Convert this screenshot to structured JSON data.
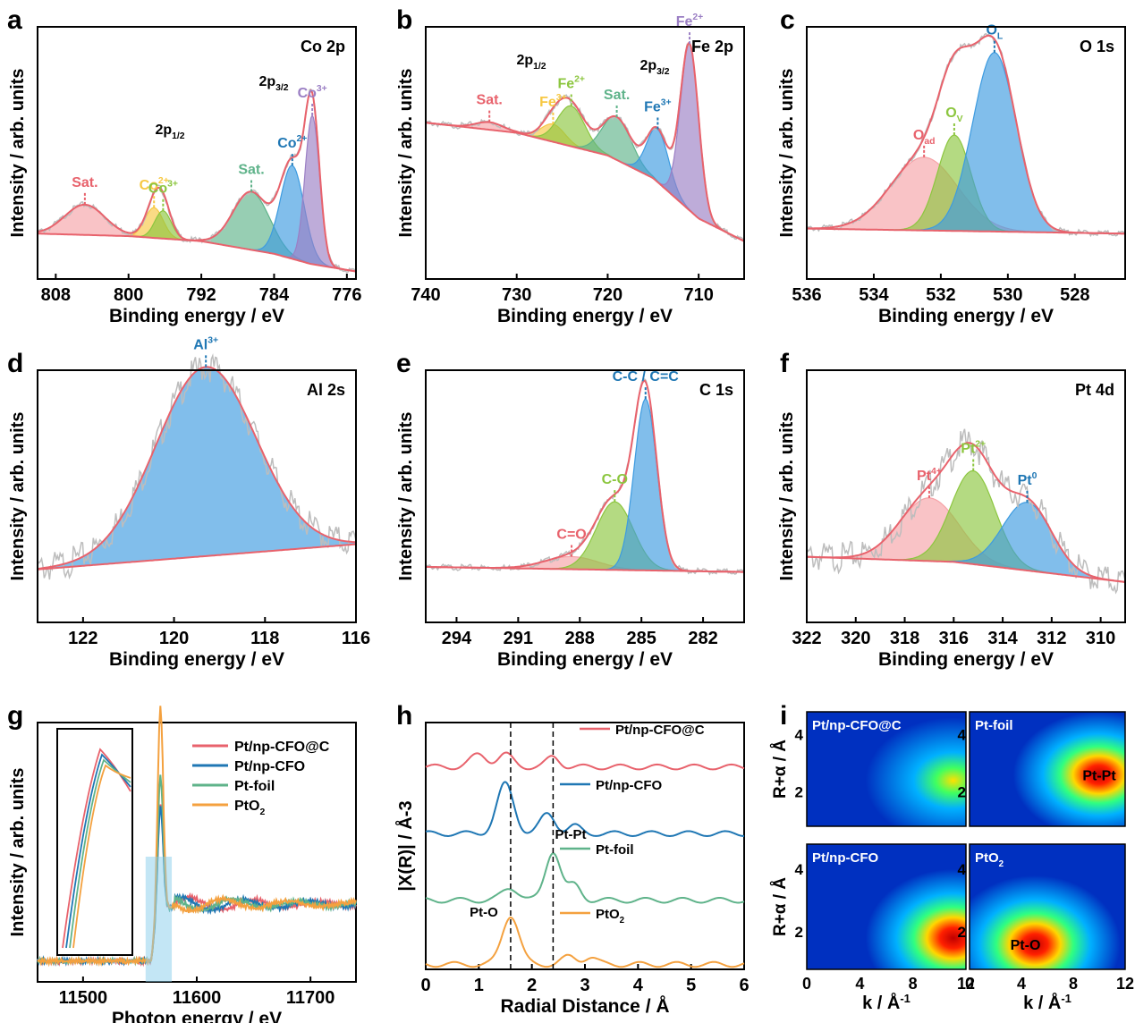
{
  "colors": {
    "red": "#e8626c",
    "redfill": "#f6a3a8",
    "blue": "#1f77b4",
    "bluefill": "#3d9be0",
    "green": "#8cc63f",
    "purple": "#9b7fc4",
    "yellow": "#f7c843",
    "teal": "#5fb38a",
    "orange": "#f4a13f",
    "gray": "#bdbdbd"
  },
  "chart_data": [
    {
      "id": "a",
      "type": "area",
      "title": "Co 2p",
      "xlabel": "Binding energy / eV",
      "ylabel": "Intensity / arb. units",
      "xlim": [
        810,
        775
      ],
      "xticks": [
        808,
        800,
        792,
        784,
        776
      ],
      "baseline": [
        [
          810,
          0.18
        ],
        [
          800,
          0.17
        ],
        [
          792,
          0.15
        ],
        [
          784,
          0.1
        ],
        [
          780,
          0.06
        ],
        [
          775,
          0.03
        ]
      ],
      "peaks": [
        {
          "label": "Sat.",
          "center": 804.8,
          "height": 0.12,
          "width": 2.2,
          "color": "red"
        },
        {
          "label": "Co2+",
          "center": 797.2,
          "height": 0.12,
          "width": 1.0,
          "color": "yellow"
        },
        {
          "label": "Co3+",
          "center": 796.2,
          "height": 0.11,
          "width": 0.9,
          "color": "green"
        },
        {
          "label": "Sat.",
          "center": 786.5,
          "height": 0.23,
          "width": 2.0,
          "color": "teal"
        },
        {
          "label": "Co2+",
          "center": 782.0,
          "height": 0.37,
          "width": 1.3,
          "color": "blue"
        },
        {
          "label": "Co3+",
          "center": 779.8,
          "height": 0.59,
          "width": 0.8,
          "color": "purple"
        }
      ],
      "annotations": [
        "2p1/2",
        "2p3/2"
      ]
    },
    {
      "id": "b",
      "type": "area",
      "title": "Fe 2p",
      "xlabel": "Binding energy / eV",
      "ylabel": "Intensity / arb. units",
      "xlim": [
        740,
        705
      ],
      "xticks": [
        740,
        730,
        720,
        710
      ],
      "baseline": [
        [
          740,
          0.62
        ],
        [
          730,
          0.58
        ],
        [
          720,
          0.49
        ],
        [
          715,
          0.4
        ],
        [
          710,
          0.24
        ],
        [
          705,
          0.15
        ]
      ],
      "peaks": [
        {
          "label": "Sat.",
          "center": 733.0,
          "height": 0.03,
          "width": 1.5,
          "color": "red"
        },
        {
          "label": "Fe3+",
          "center": 726.0,
          "height": 0.07,
          "width": 1.3,
          "color": "yellow"
        },
        {
          "label": "Fe2+",
          "center": 724.0,
          "height": 0.16,
          "width": 1.5,
          "color": "green"
        },
        {
          "label": "Sat.",
          "center": 719.0,
          "height": 0.17,
          "width": 1.6,
          "color": "teal"
        },
        {
          "label": "Fe3+",
          "center": 714.5,
          "height": 0.21,
          "width": 1.2,
          "color": "blue"
        },
        {
          "label": "Fe2+",
          "center": 711.0,
          "height": 0.66,
          "width": 1.0,
          "color": "purple"
        }
      ],
      "annotations": [
        "2p1/2",
        "2p3/2"
      ]
    },
    {
      "id": "c",
      "type": "area",
      "title": "O 1s",
      "xlabel": "Binding energy / eV",
      "ylabel": "Intensity / arb. units",
      "xlim": [
        536,
        526.5
      ],
      "xticks": [
        536,
        534,
        532,
        530,
        528
      ],
      "baseline": [
        [
          536,
          0.2
        ],
        [
          526.5,
          0.18
        ]
      ],
      "peaks": [
        {
          "label": "Oad",
          "center": 532.5,
          "height": 0.29,
          "width": 1.0,
          "color": "red"
        },
        {
          "label": "OV",
          "center": 531.6,
          "height": 0.38,
          "width": 0.5,
          "color": "green"
        },
        {
          "label": "OL",
          "center": 530.4,
          "height": 0.71,
          "width": 0.65,
          "color": "blue"
        }
      ]
    },
    {
      "id": "d",
      "type": "area",
      "title": "Al 2s",
      "xlabel": "Binding energy / eV",
      "ylabel": "Intensity / arb. units",
      "xlim": [
        123,
        116
      ],
      "xticks": [
        122,
        120,
        118,
        116
      ],
      "baseline": [
        [
          123,
          0.21
        ],
        [
          116,
          0.31
        ]
      ],
      "peaks": [
        {
          "label": "Al3+",
          "center": 119.3,
          "height": 0.75,
          "width": 1.1,
          "color": "blue"
        }
      ]
    },
    {
      "id": "e",
      "type": "area",
      "title": "C 1s",
      "xlabel": "Binding energy / eV",
      "ylabel": "Intensity / arb. units",
      "xlim": [
        295.5,
        280
      ],
      "xticks": [
        294,
        291,
        288,
        285,
        282
      ],
      "baseline": [
        [
          295.5,
          0.22
        ],
        [
          280,
          0.2
        ]
      ],
      "peaks": [
        {
          "label": "C=O",
          "center": 288.4,
          "height": 0.05,
          "width": 1.3,
          "color": "red"
        },
        {
          "label": "C-O",
          "center": 286.3,
          "height": 0.27,
          "width": 0.9,
          "color": "green"
        },
        {
          "label": "C-C / C=C",
          "center": 284.8,
          "height": 0.68,
          "width": 0.55,
          "color": "blue"
        }
      ]
    },
    {
      "id": "f",
      "type": "area",
      "title": "Pt 4d",
      "xlabel": "Binding energy / eV",
      "ylabel": "Intensity / arb. units",
      "xlim": [
        322,
        309
      ],
      "xticks": [
        322,
        320,
        318,
        316,
        314,
        312,
        310
      ],
      "baseline": [
        [
          322,
          0.26
        ],
        [
          316,
          0.24
        ],
        [
          309,
          0.16
        ]
      ],
      "peaks": [
        {
          "label": "Pt4+",
          "center": 317.0,
          "height": 0.25,
          "width": 1.2,
          "color": "red"
        },
        {
          "label": "Pt2+",
          "center": 315.2,
          "height": 0.37,
          "width": 0.9,
          "color": "green"
        },
        {
          "label": "Pt0",
          "center": 313.0,
          "height": 0.27,
          "width": 1.0,
          "color": "blue"
        }
      ]
    },
    {
      "id": "g",
      "type": "line",
      "xlabel": "Photon energy / eV",
      "ylabel": "Intensity / arb. units",
      "xlim": [
        11460,
        11740
      ],
      "xticks": [
        11500,
        11600,
        11700
      ],
      "series": [
        {
          "name": "Pt/np-CFO@C",
          "color": "red"
        },
        {
          "name": "Pt/np-CFO",
          "color": "blue"
        },
        {
          "name": "Pt-foil",
          "color": "teal"
        },
        {
          "name": "PtO2",
          "color": "orange"
        }
      ]
    },
    {
      "id": "h",
      "type": "line",
      "xlabel": "Radial Distance / Å",
      "ylabel": "|X(R)| / Å-3",
      "xlim": [
        0,
        6
      ],
      "xticks": [
        0,
        1,
        2,
        3,
        4,
        5,
        6
      ],
      "vlines": [
        1.6,
        2.4
      ],
      "series": [
        {
          "name": "Pt/np-CFO@C",
          "color": "red"
        },
        {
          "name": "Pt/np-CFO",
          "color": "blue"
        },
        {
          "name": "Pt-foil",
          "color": "teal"
        },
        {
          "name": "PtO2",
          "color": "orange"
        }
      ],
      "annotations": [
        "Pt-Pt",
        "Pt-O"
      ]
    },
    {
      "id": "i",
      "type": "heatmap",
      "xlabel": "k / Å-1",
      "ylabel": "R+α / Å",
      "xticks": [
        0,
        4,
        8,
        12
      ],
      "yticks": [
        2,
        4
      ],
      "maps": [
        {
          "name": "Pt/np-CFO@C",
          "peak_k": 11,
          "peak_r": 2.4,
          "intensity": 0.55
        },
        {
          "name": "Pt-foil",
          "peak_k": 10,
          "peak_r": 2.6,
          "intensity": 1.0,
          "label": "Pt-Pt"
        },
        {
          "name": "Pt/np-CFO",
          "peak_k": 11,
          "peak_r": 1.8,
          "intensity": 1.0
        },
        {
          "name": "PtO2",
          "peak_k": 5,
          "peak_r": 1.6,
          "intensity": 1.0,
          "label": "Pt-O"
        }
      ]
    }
  ],
  "labels": {
    "a": "a",
    "b": "b",
    "c": "c",
    "d": "d",
    "e": "e",
    "f": "f",
    "g": "g",
    "h": "h",
    "i": "i"
  }
}
